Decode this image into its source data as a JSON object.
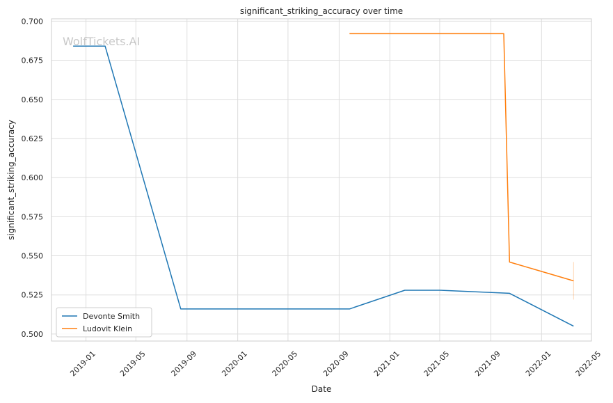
{
  "chart_data": {
    "type": "line",
    "title": "significant_striking_accuracy over time",
    "xlabel": "Date",
    "ylabel": "significant_striking_accuracy",
    "watermark": "WolfTickets.AI",
    "xlim": [
      "2018-10-10",
      "2022-05-01"
    ],
    "ylim": [
      0.4955,
      0.7015
    ],
    "x_ticks": [
      "2019-01",
      "2019-05",
      "2019-09",
      "2020-01",
      "2020-05",
      "2020-09",
      "2021-01",
      "2021-05",
      "2021-09",
      "2022-01",
      "2022-05"
    ],
    "y_ticks": [
      "0.500",
      "0.525",
      "0.550",
      "0.575",
      "0.600",
      "0.625",
      "0.650",
      "0.675",
      "0.700"
    ],
    "grid": true,
    "legend_position": "lower-left",
    "series": [
      {
        "name": "Devonte Smith",
        "color": "#1f77b4",
        "points": [
          {
            "x": "2018-12-01",
            "y": 0.684
          },
          {
            "x": "2019-02-16",
            "y": 0.684
          },
          {
            "x": "2019-08-17",
            "y": 0.516
          },
          {
            "x": "2020-09-26",
            "y": 0.516
          },
          {
            "x": "2021-02-06",
            "y": 0.528
          },
          {
            "x": "2021-05-01",
            "y": 0.528
          },
          {
            "x": "2021-10-16",
            "y": 0.526
          },
          {
            "x": "2022-03-19",
            "y": 0.505
          }
        ]
      },
      {
        "name": "Ludovit Klein",
        "color": "#ff7f0e",
        "points": [
          {
            "x": "2020-09-26",
            "y": 0.692
          },
          {
            "x": "2021-10-02",
            "y": 0.692
          },
          {
            "x": "2021-10-16",
            "y": 0.546
          },
          {
            "x": "2022-03-19",
            "y": 0.534
          }
        ],
        "error_bar": {
          "x": "2022-03-19",
          "low": 0.522,
          "high": 0.546
        }
      }
    ]
  }
}
